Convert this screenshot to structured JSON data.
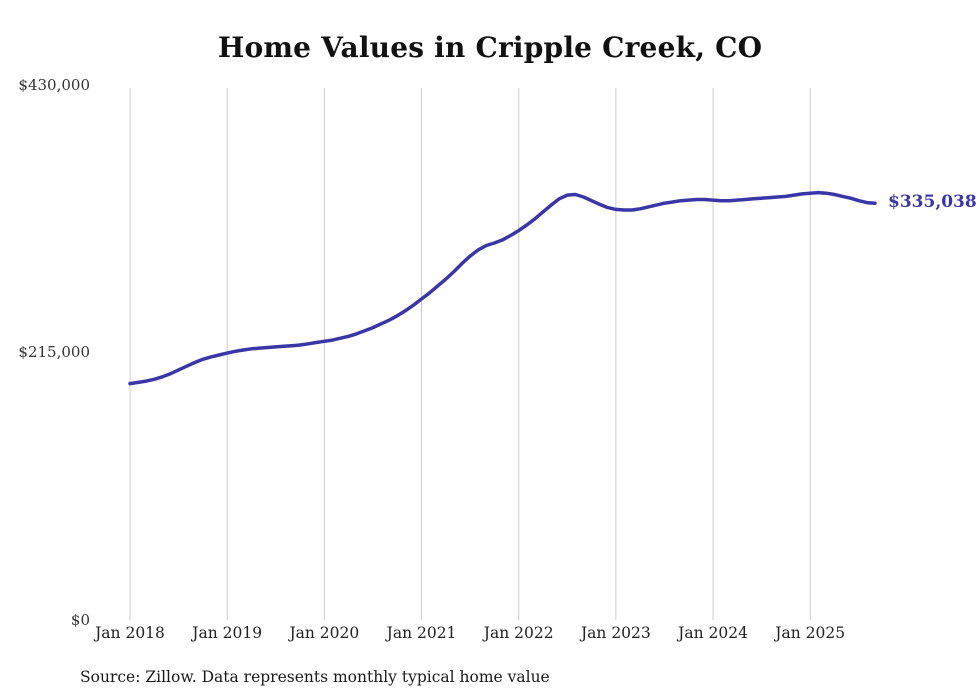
{
  "chart_data": {
    "type": "line",
    "title": "Home Values in Cripple Creek, CO",
    "unit": "USD",
    "frequency": "monthly",
    "ylim": [
      0,
      430000
    ],
    "ytick_labels": [
      "$430,000",
      "$215,000",
      "$0"
    ],
    "xtick_labels": [
      "Jan 2018",
      "Jan 2019",
      "Jan 2020",
      "Jan 2021",
      "Jan 2022",
      "Jan 2023",
      "Jan 2024",
      "Jan 2025"
    ],
    "end_label": "$335,038",
    "end_value": 335038,
    "line_color": "#3a36a8",
    "grid": "vertical-only",
    "legend": "none",
    "series": [
      {
        "name": "Typical home value",
        "start": "2018-01",
        "values_by_year": {
          "2018": [
            190000,
            191000,
            192000,
            193500,
            195500,
            198000,
            201000,
            204000,
            207000,
            209500,
            211500,
            213000
          ],
          "2019": [
            214500,
            216000,
            217000,
            218000,
            218500,
            219000,
            219500,
            220000,
            220500,
            221000,
            222000,
            223000
          ],
          "2020": [
            224000,
            225000,
            226500,
            228000,
            230000,
            232500,
            235000,
            238000,
            241000,
            244500,
            248500,
            253000
          ],
          "2021": [
            258000,
            263000,
            268500,
            274000,
            280000,
            286500,
            292500,
            297500,
            301000,
            303000,
            305500,
            309000
          ],
          "2022": [
            313000,
            317500,
            322500,
            328000,
            333500,
            338500,
            341500,
            342000,
            340000,
            337000,
            334000,
            331500
          ],
          "2023": [
            330000,
            329500,
            329500,
            330500,
            332000,
            333500,
            335000,
            336000,
            337000,
            337500,
            338000,
            338000
          ],
          "2024": [
            337500,
            337000,
            337000,
            337500,
            338000,
            338500,
            339000,
            339500,
            340000,
            340500,
            341500,
            342500
          ],
          "2025": [
            343000,
            343500,
            343000,
            342000,
            340500,
            339000,
            337000,
            335500,
            335038
          ]
        }
      }
    ]
  },
  "footer": {
    "source": "Source: Zillow. Data represents monthly typical home value"
  }
}
